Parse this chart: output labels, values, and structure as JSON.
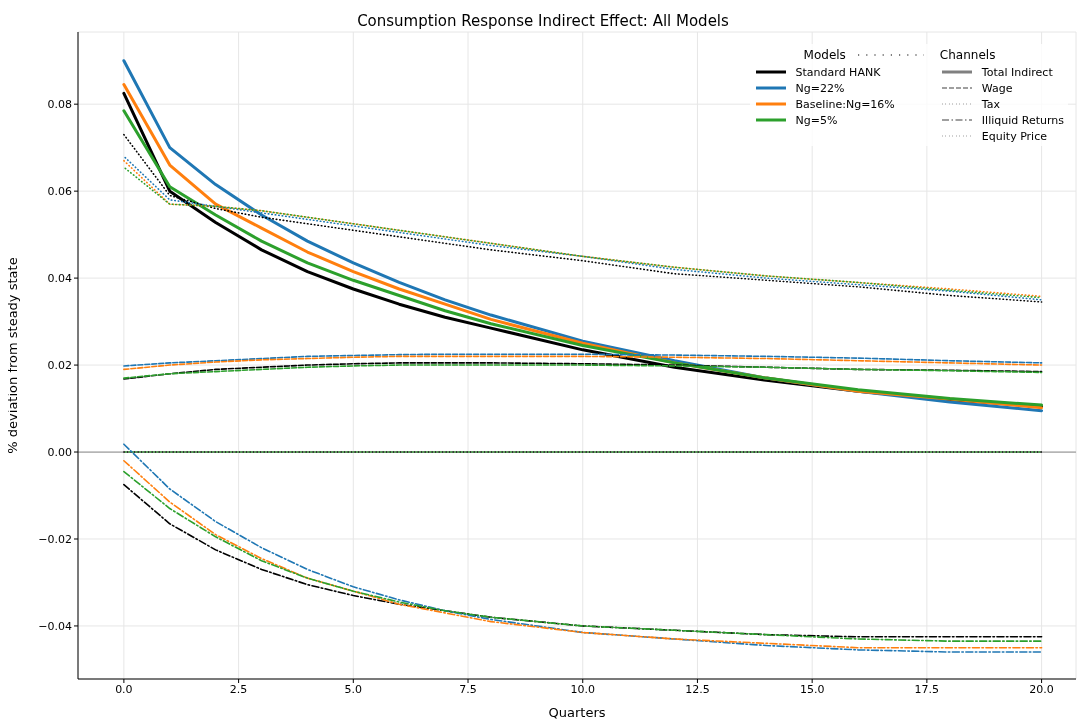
{
  "chart_data": {
    "type": "line",
    "title": "Consumption Response Indirect Effect: All Models",
    "xlabel": "Quarters",
    "ylabel": "% deviation from steady state",
    "legend_title": "Models",
    "legend": "top right",
    "grid": true,
    "marker": "none",
    "x": [
      0,
      1,
      2,
      3,
      4,
      5,
      6,
      7,
      8,
      10,
      12,
      14,
      16,
      18,
      20
    ],
    "xlim": [
      -1,
      20.75
    ],
    "xticks": [
      {
        "value": 0,
        "label": "0.0"
      },
      {
        "value": 2.5,
        "label": "2.5"
      },
      {
        "value": 5,
        "label": "5.0"
      },
      {
        "value": 7.5,
        "label": "7.5"
      },
      {
        "value": 10,
        "label": "10.0"
      },
      {
        "value": 12.5,
        "label": "12.5"
      },
      {
        "value": 15,
        "label": "15.0"
      },
      {
        "value": 17.5,
        "label": "17.5"
      },
      {
        "value": 20,
        "label": "20.0"
      }
    ],
    "ylim": [
      -0.0522,
      0.0966
    ],
    "yticks": [
      {
        "value": -0.04,
        "label": "−0.04"
      },
      {
        "value": -0.02,
        "label": "−0.02"
      },
      {
        "value": 0,
        "label": "0.00"
      },
      {
        "value": 0.02,
        "label": "0.02"
      },
      {
        "value": 0.04,
        "label": "0.04"
      },
      {
        "value": 0.06,
        "label": "0.06"
      },
      {
        "value": 0.08,
        "label": "0.08"
      }
    ],
    "ref_lines": [
      {
        "axis": "y",
        "value": 0,
        "color": "#a0a0a0"
      }
    ],
    "annotations": [
      "Channels",
      "Total Indirect",
      "Wage",
      "Tax",
      "Illiquid Returns",
      "Equity Price"
    ],
    "series": [
      {
        "name": "Standard HANK",
        "color": "#000000",
        "line_style": "solid",
        "values": [
          0.0825,
          0.06,
          0.0528,
          0.0465,
          0.0415,
          0.0375,
          0.034,
          0.031,
          0.0285,
          0.0235,
          0.0195,
          0.0165,
          0.014,
          0.012,
          0.0105
        ]
      },
      {
        "name": "Ng=22%",
        "color": "#1f77b4",
        "line_style": "solid",
        "values": [
          0.09,
          0.07,
          0.0615,
          0.0545,
          0.0485,
          0.0435,
          0.039,
          0.035,
          0.0315,
          0.0255,
          0.021,
          0.017,
          0.014,
          0.0115,
          0.0095
        ]
      },
      {
        "name": "Baseline:Ng=16%",
        "color": "#ff7f0e",
        "line_style": "solid",
        "values": [
          0.0845,
          0.066,
          0.057,
          0.0515,
          0.046,
          0.0415,
          0.0375,
          0.034,
          0.0305,
          0.025,
          0.0205,
          0.017,
          0.014,
          0.0122,
          0.0102
        ]
      },
      {
        "name": "Ng=5%",
        "color": "#2ca02c",
        "line_style": "solid",
        "values": [
          0.0785,
          0.061,
          0.0545,
          0.0485,
          0.0435,
          0.0395,
          0.036,
          0.0325,
          0.0295,
          0.0245,
          0.0205,
          0.017,
          0.0143,
          0.0123,
          0.0108
        ]
      },
      {
        "color": "#000000",
        "line_style": "dashed",
        "values": [
          0.0168,
          0.018,
          0.019,
          0.0195,
          0.02,
          0.0203,
          0.0205,
          0.0205,
          0.0205,
          0.0203,
          0.02,
          0.0195,
          0.019,
          0.0188,
          0.0185
        ]
      },
      {
        "color": "#1f77b4",
        "line_style": "dashed",
        "values": [
          0.0198,
          0.0205,
          0.021,
          0.0215,
          0.022,
          0.0222,
          0.0224,
          0.0225,
          0.0225,
          0.0225,
          0.0223,
          0.022,
          0.0216,
          0.021,
          0.0205
        ]
      },
      {
        "color": "#ff7f0e",
        "line_style": "dashed",
        "values": [
          0.019,
          0.02,
          0.0207,
          0.0212,
          0.0215,
          0.0218,
          0.022,
          0.022,
          0.022,
          0.022,
          0.0218,
          0.0215,
          0.021,
          0.0205,
          0.02
        ]
      },
      {
        "color": "#2ca02c",
        "line_style": "dashed",
        "values": [
          0.017,
          0.018,
          0.0185,
          0.019,
          0.0195,
          0.0198,
          0.02,
          0.02,
          0.02,
          0.02,
          0.0198,
          0.0195,
          0.019,
          0.0187,
          0.0183
        ]
      },
      {
        "color": "#000000",
        "line_style": "dotted",
        "values": [
          0,
          0,
          0,
          0,
          0,
          0,
          0,
          0,
          0,
          0,
          0,
          0,
          0,
          0,
          0
        ]
      },
      {
        "color": "#2ca02c",
        "line_style": "dotted",
        "values": [
          0,
          0,
          0,
          0,
          0,
          0,
          0,
          0,
          0,
          0,
          0,
          0,
          0,
          0,
          0
        ]
      },
      {
        "color": "#000000",
        "line_style": "dashdot",
        "values": [
          -0.0075,
          -0.0165,
          -0.0225,
          -0.027,
          -0.0305,
          -0.033,
          -0.035,
          -0.0365,
          -0.038,
          -0.04,
          -0.041,
          -0.042,
          -0.0425,
          -0.0425,
          -0.0425
        ]
      },
      {
        "color": "#1f77b4",
        "line_style": "dashdot",
        "values": [
          0.0018,
          -0.0085,
          -0.016,
          -0.022,
          -0.027,
          -0.031,
          -0.034,
          -0.0365,
          -0.0385,
          -0.0415,
          -0.043,
          -0.0445,
          -0.0455,
          -0.046,
          -0.046
        ]
      },
      {
        "color": "#ff7f0e",
        "line_style": "dashdot",
        "values": [
          -0.002,
          -0.0115,
          -0.019,
          -0.0245,
          -0.029,
          -0.032,
          -0.035,
          -0.037,
          -0.039,
          -0.0415,
          -0.043,
          -0.044,
          -0.045,
          -0.045,
          -0.045
        ]
      },
      {
        "color": "#2ca02c",
        "line_style": "dashdot",
        "values": [
          -0.0045,
          -0.013,
          -0.0195,
          -0.025,
          -0.029,
          -0.032,
          -0.0345,
          -0.0365,
          -0.038,
          -0.04,
          -0.041,
          -0.042,
          -0.043,
          -0.0435,
          -0.0435
        ]
      },
      {
        "color": "#000000",
        "line_style": "dotted",
        "values": [
          0.073,
          0.059,
          0.056,
          0.054,
          0.0525,
          0.051,
          0.0495,
          0.048,
          0.0465,
          0.044,
          0.041,
          0.0395,
          0.038,
          0.036,
          0.0345
        ]
      },
      {
        "color": "#1f77b4",
        "line_style": "dotted",
        "values": [
          0.068,
          0.058,
          0.0565,
          0.055,
          0.0535,
          0.052,
          0.0505,
          0.049,
          0.0475,
          0.045,
          0.042,
          0.04,
          0.0385,
          0.037,
          0.035
        ]
      },
      {
        "color": "#ff7f0e",
        "line_style": "dotted",
        "values": [
          0.067,
          0.057,
          0.0565,
          0.0555,
          0.054,
          0.0525,
          0.051,
          0.0495,
          0.048,
          0.045,
          0.0425,
          0.0405,
          0.039,
          0.0375,
          0.0358
        ]
      },
      {
        "color": "#2ca02c",
        "line_style": "dotted",
        "values": [
          0.0655,
          0.057,
          0.0565,
          0.0555,
          0.054,
          0.0525,
          0.051,
          0.0495,
          0.048,
          0.045,
          0.0425,
          0.0405,
          0.039,
          0.0372,
          0.0355
        ]
      }
    ]
  }
}
